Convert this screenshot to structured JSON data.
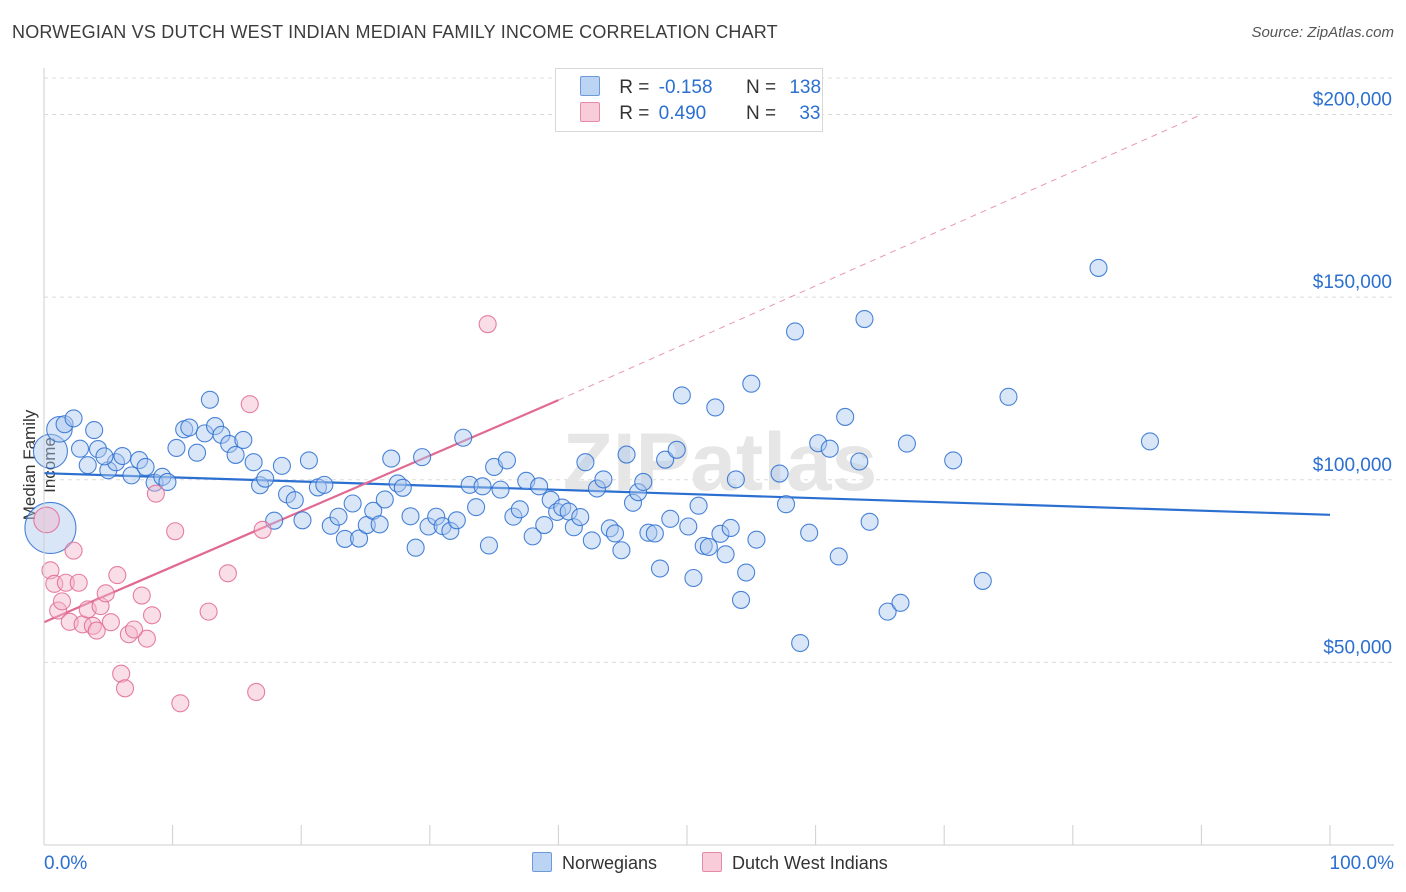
{
  "title": "NORWEGIAN VS DUTCH WEST INDIAN MEDIAN FAMILY INCOME CORRELATION CHART",
  "source": "Source: ZipAtlas.com",
  "watermark": "ZIPatlas",
  "colors": {
    "blue": "#2b6fd0",
    "blue_fill": "#aac8f0",
    "pink": "#e06a92",
    "pink_fill": "#f5b6c9",
    "grid": "#dcdcdc",
    "tick_label": "#2b6fd0"
  },
  "legend": {
    "rows": [
      {
        "r_label": "R =",
        "r_value": "-0.158",
        "n_label": "N =",
        "n_value": "138",
        "series": "Norwegians"
      },
      {
        "r_label": "R =",
        "r_value": "0.490",
        "n_label": "N =",
        "n_value": "33",
        "series": "Dutch West Indians"
      }
    ]
  },
  "chart_data": {
    "type": "scatter",
    "title": "NORWEGIAN VS DUTCH WEST INDIAN MEDIAN FAMILY INCOME CORRELATION CHART",
    "xlabel": "",
    "ylabel": "Median Family Income",
    "xlim": [
      0,
      100
    ],
    "ylim": [
      0,
      210000
    ],
    "x_tick_labels": [
      "0.0%",
      "100.0%"
    ],
    "y_ticks": [
      50000,
      100000,
      150000,
      200000
    ],
    "y_tick_labels": [
      "$50,000",
      "$100,000",
      "$150,000",
      "$200,000"
    ],
    "grid": true,
    "legend_position": "top-center",
    "series": [
      {
        "name": "Norwegians",
        "r": -0.158,
        "n": 138,
        "trend": {
          "x": [
            0,
            100
          ],
          "y": [
            101800,
            90400
          ],
          "style": "solid"
        },
        "points": [
          [
            0.5,
            86800,
            3
          ],
          [
            0.5,
            107800,
            2
          ],
          [
            1.2,
            113800,
            1.5
          ],
          [
            1.6,
            115200,
            1
          ],
          [
            2.3,
            116800,
            1
          ],
          [
            2.8,
            108500,
            1
          ],
          [
            3.4,
            104000,
            1
          ],
          [
            3.9,
            113600,
            1
          ],
          [
            4.2,
            108400,
            1
          ],
          [
            5.0,
            102600,
            1
          ],
          [
            5.6,
            104800,
            1
          ],
          [
            6.1,
            106500,
            1
          ],
          [
            6.8,
            101200,
            1
          ],
          [
            7.4,
            105400,
            1
          ],
          [
            7.9,
            103500,
            1
          ],
          [
            8.6,
            99200,
            1
          ],
          [
            9.2,
            100800,
            1
          ],
          [
            9.6,
            99400,
            1
          ],
          [
            10.3,
            108700,
            1
          ],
          [
            10.9,
            113800,
            1
          ],
          [
            11.3,
            114300,
            1
          ],
          [
            11.9,
            107400,
            1
          ],
          [
            12.5,
            112700,
            1
          ],
          [
            12.9,
            121900,
            1
          ],
          [
            13.3,
            114700,
            1
          ],
          [
            13.8,
            112300,
            1
          ],
          [
            14.4,
            109800,
            1
          ],
          [
            14.9,
            106800,
            1
          ],
          [
            15.5,
            110900,
            1
          ],
          [
            16.3,
            104800,
            1
          ],
          [
            16.8,
            98500,
            1
          ],
          [
            17.2,
            100300,
            1
          ],
          [
            17.9,
            88800,
            1
          ],
          [
            18.5,
            103800,
            1
          ],
          [
            18.9,
            96000,
            1
          ],
          [
            19.5,
            94400,
            1
          ],
          [
            20.1,
            88900,
            1
          ],
          [
            20.6,
            105300,
            1
          ],
          [
            21.3,
            97900,
            1
          ],
          [
            21.8,
            98600,
            1
          ],
          [
            22.3,
            87400,
            1
          ],
          [
            22.9,
            89900,
            1
          ],
          [
            23.4,
            83800,
            1
          ],
          [
            24.0,
            93500,
            1
          ],
          [
            24.5,
            83900,
            1
          ],
          [
            25.1,
            87600,
            1
          ],
          [
            25.6,
            91500,
            1
          ],
          [
            26.1,
            87800,
            1
          ],
          [
            26.5,
            94600,
            1
          ],
          [
            27.0,
            105800,
            1
          ],
          [
            27.5,
            99000,
            1
          ],
          [
            27.9,
            97800,
            1
          ],
          [
            28.5,
            90000,
            1
          ],
          [
            28.9,
            81400,
            1
          ],
          [
            29.4,
            106200,
            1
          ],
          [
            29.9,
            87200,
            1
          ],
          [
            30.5,
            89900,
            1
          ],
          [
            31.0,
            87300,
            1
          ],
          [
            31.6,
            86000,
            1
          ],
          [
            32.1,
            88900,
            1
          ],
          [
            32.6,
            111500,
            1
          ],
          [
            33.1,
            98600,
            1
          ],
          [
            33.6,
            92500,
            1
          ],
          [
            34.1,
            98200,
            1
          ],
          [
            34.6,
            82000,
            1
          ],
          [
            35.0,
            103500,
            1
          ],
          [
            35.5,
            97300,
            1
          ],
          [
            36.0,
            105300,
            1
          ],
          [
            36.5,
            89900,
            1
          ],
          [
            37.0,
            91900,
            1
          ],
          [
            37.5,
            99700,
            1
          ],
          [
            38.0,
            84500,
            1
          ],
          [
            38.5,
            98200,
            1
          ],
          [
            38.9,
            87600,
            1
          ],
          [
            39.4,
            94500,
            1
          ],
          [
            39.9,
            91200,
            1
          ],
          [
            40.3,
            92400,
            1
          ],
          [
            40.8,
            91300,
            1
          ],
          [
            41.2,
            87000,
            1
          ],
          [
            41.7,
            89800,
            1
          ],
          [
            42.1,
            104800,
            1
          ],
          [
            42.6,
            83400,
            1
          ],
          [
            43.0,
            97600,
            1
          ],
          [
            43.5,
            100100,
            1
          ],
          [
            44.0,
            86700,
            1
          ],
          [
            44.4,
            85300,
            1
          ],
          [
            44.9,
            80700,
            1
          ],
          [
            45.3,
            106900,
            1
          ],
          [
            45.8,
            93700,
            1
          ],
          [
            46.2,
            96600,
            1
          ],
          [
            46.6,
            99400,
            1
          ],
          [
            47.0,
            85500,
            1
          ],
          [
            47.5,
            85300,
            1
          ],
          [
            47.9,
            75700,
            1
          ],
          [
            48.3,
            105500,
            1
          ],
          [
            48.7,
            89300,
            1
          ],
          [
            49.2,
            108200,
            1
          ],
          [
            49.6,
            123100,
            1
          ],
          [
            50.1,
            87200,
            1
          ],
          [
            50.5,
            73100,
            1
          ],
          [
            50.9,
            92900,
            1
          ],
          [
            51.3,
            81900,
            1
          ],
          [
            51.7,
            81600,
            1
          ],
          [
            52.2,
            119800,
            1
          ],
          [
            52.6,
            85200,
            1
          ],
          [
            53.0,
            79600,
            1
          ],
          [
            53.4,
            86800,
            1
          ],
          [
            53.8,
            100100,
            1
          ],
          [
            54.2,
            67100,
            1
          ],
          [
            54.6,
            74600,
            1
          ],
          [
            55.0,
            126300,
            1
          ],
          [
            55.4,
            83600,
            1
          ],
          [
            57.2,
            101700,
            1
          ],
          [
            57.7,
            93300,
            1
          ],
          [
            58.4,
            140600,
            1
          ],
          [
            58.8,
            55300,
            1
          ],
          [
            59.5,
            85500,
            1
          ],
          [
            60.2,
            110000,
            1
          ],
          [
            61.1,
            108500,
            1
          ],
          [
            61.8,
            79000,
            1
          ],
          [
            62.3,
            117200,
            1
          ],
          [
            63.4,
            105000,
            1
          ],
          [
            63.8,
            144000,
            1
          ],
          [
            64.2,
            88500,
            1
          ],
          [
            65.6,
            63900,
            1
          ],
          [
            66.6,
            66300,
            1
          ],
          [
            67.1,
            109900,
            1
          ],
          [
            70.7,
            105300,
            1
          ],
          [
            73.0,
            72300,
            1
          ],
          [
            75.0,
            122700,
            1
          ],
          [
            82.0,
            158000,
            1
          ],
          [
            86.0,
            110500,
            1
          ],
          [
            4.7,
            106400,
            1
          ]
        ]
      },
      {
        "name": "Dutch West Indians",
        "r": 0.49,
        "n": 33,
        "trend": {
          "x": [
            0,
            40
          ],
          "y": [
            61000,
            121800
          ],
          "style": "solid",
          "extended": {
            "x": [
              40,
              90
            ],
            "y": [
              121800,
              200000
            ],
            "style": "dashed"
          }
        },
        "points": [
          [
            0.2,
            89000,
            1.5
          ],
          [
            0.5,
            75200,
            1
          ],
          [
            0.8,
            71500,
            1
          ],
          [
            1.1,
            64200,
            1
          ],
          [
            1.4,
            66700,
            1
          ],
          [
            1.7,
            71800,
            1
          ],
          [
            2.0,
            61100,
            1
          ],
          [
            2.3,
            80600,
            1
          ],
          [
            2.7,
            71800,
            1
          ],
          [
            3.0,
            60400,
            1
          ],
          [
            3.4,
            64500,
            1
          ],
          [
            3.8,
            60000,
            1
          ],
          [
            4.1,
            58700,
            1
          ],
          [
            4.4,
            65400,
            1
          ],
          [
            4.8,
            68900,
            1
          ],
          [
            5.2,
            61000,
            1
          ],
          [
            5.7,
            73900,
            1
          ],
          [
            6.0,
            46900,
            1
          ],
          [
            6.3,
            42900,
            1
          ],
          [
            6.6,
            57700,
            1
          ],
          [
            7.6,
            68300,
            1
          ],
          [
            8.0,
            56500,
            1
          ],
          [
            8.4,
            62900,
            1
          ],
          [
            8.7,
            96200,
            1
          ],
          [
            10.2,
            85900,
            1
          ],
          [
            10.6,
            38800,
            1
          ],
          [
            12.8,
            63900,
            1
          ],
          [
            14.3,
            74400,
            1
          ],
          [
            16.0,
            120700,
            1
          ],
          [
            16.5,
            41900,
            1
          ],
          [
            17.0,
            86300,
            1
          ],
          [
            34.5,
            142600,
            1
          ],
          [
            7.0,
            59000,
            1
          ]
        ]
      }
    ]
  },
  "bottom_legend": [
    {
      "label": "Norwegians"
    },
    {
      "label": "Dutch West Indians"
    }
  ]
}
